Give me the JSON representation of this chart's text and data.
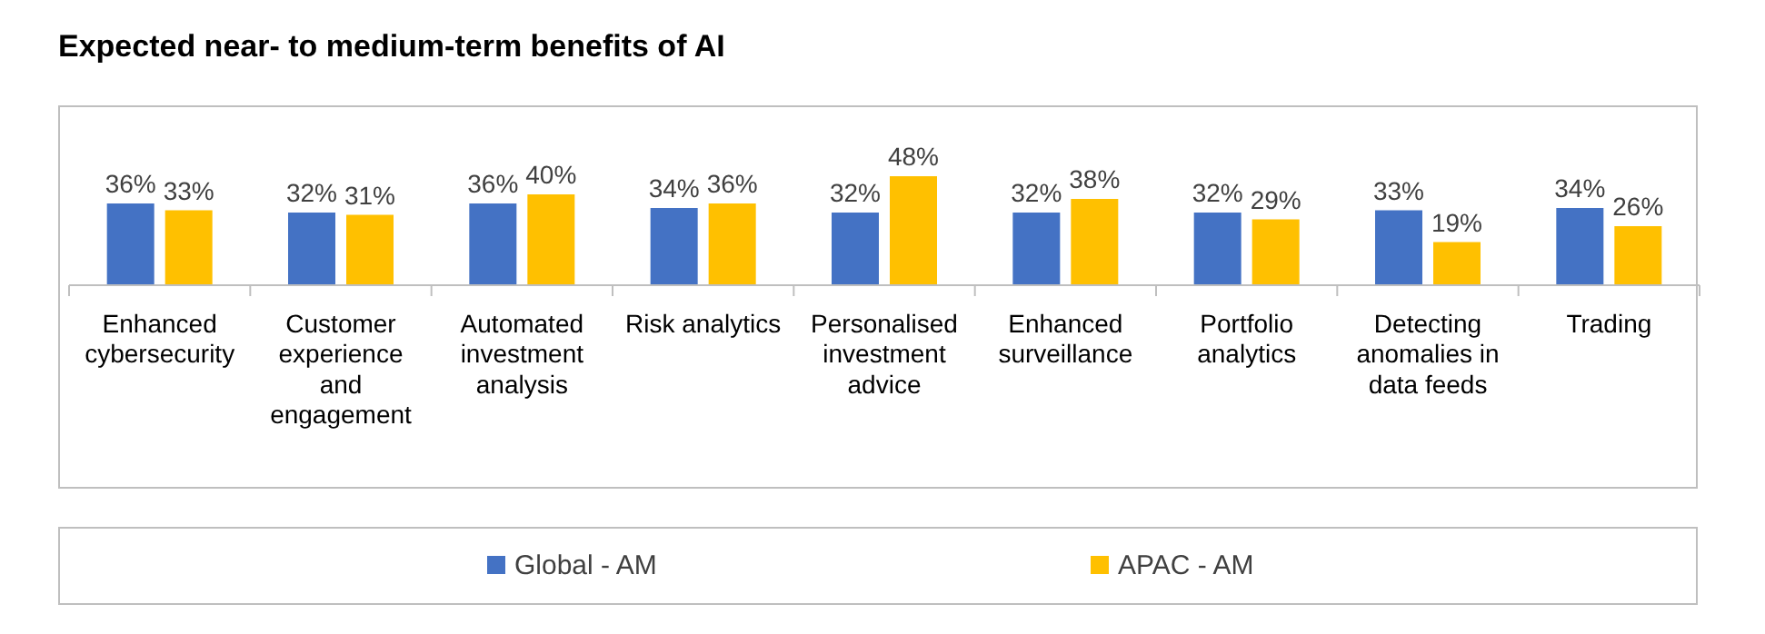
{
  "chart_data": {
    "type": "bar",
    "title": "Expected near- to medium-term benefits of AI",
    "categories": [
      "Enhanced cybersecurity",
      "Customer experience and engagement",
      "Automated investment analysis",
      "Risk analytics",
      "Personalised investment advice",
      "Enhanced surveillance",
      "Portfolio analytics",
      "Detecting anomalies in data feeds",
      "Trading"
    ],
    "series": [
      {
        "name": "Global - AM",
        "color": "#4472c4",
        "values": [
          36,
          32,
          36,
          34,
          32,
          32,
          32,
          33,
          34
        ],
        "value_labels": [
          "36%",
          "32%",
          "36%",
          "34%",
          "32%",
          "32%",
          "32%",
          "33%",
          "34%"
        ]
      },
      {
        "name": "APAC - AM",
        "color": "#ffc000",
        "values": [
          33,
          31,
          40,
          36,
          48,
          38,
          29,
          19,
          26
        ],
        "value_labels": [
          "33%",
          "31%",
          "40%",
          "36%",
          "48%",
          "38%",
          "29%",
          "19%",
          "26%"
        ]
      }
    ],
    "legend": "bottom"
  }
}
